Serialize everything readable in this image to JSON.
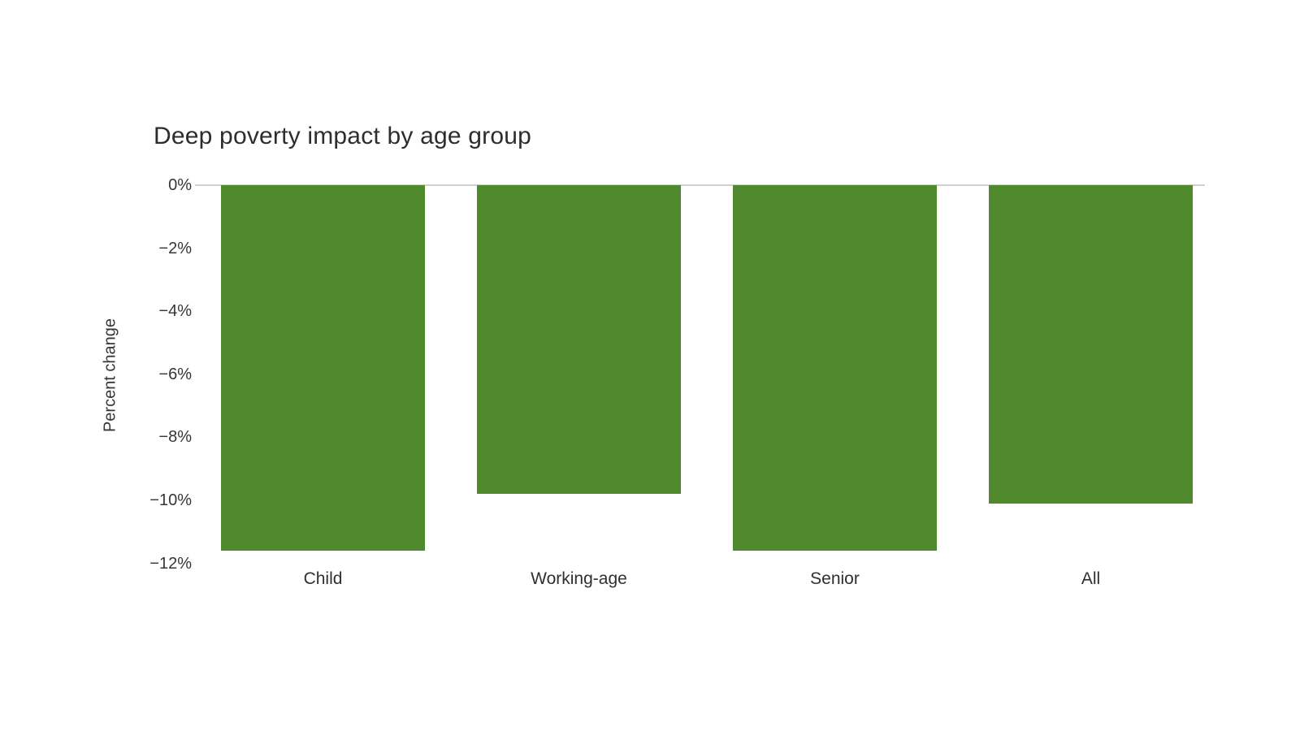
{
  "chart_data": {
    "type": "bar",
    "title": "Deep poverty impact by age group",
    "xlabel": "",
    "ylabel": "Percent change",
    "categories": [
      "Child",
      "Working-age",
      "Senior",
      "All"
    ],
    "values": [
      -11.6,
      -9.8,
      -11.6,
      -10.1
    ],
    "unit": "%",
    "ylim": [
      -12,
      0
    ],
    "ytick_labels": [
      "0%",
      "−2%",
      "−4%",
      "−6%",
      "−8%",
      "−10%",
      "−12%"
    ],
    "ytick_values": [
      0,
      -2,
      -4,
      -6,
      -8,
      -10,
      -12
    ],
    "grid": "zero-line-only",
    "legend_position": "none",
    "bar_color": "#518a2e",
    "zero_line_color": "#ccd1cc",
    "title_color": "#2d2d2d",
    "axis_text_color": "#363636",
    "background_color": "#ffffff"
  }
}
